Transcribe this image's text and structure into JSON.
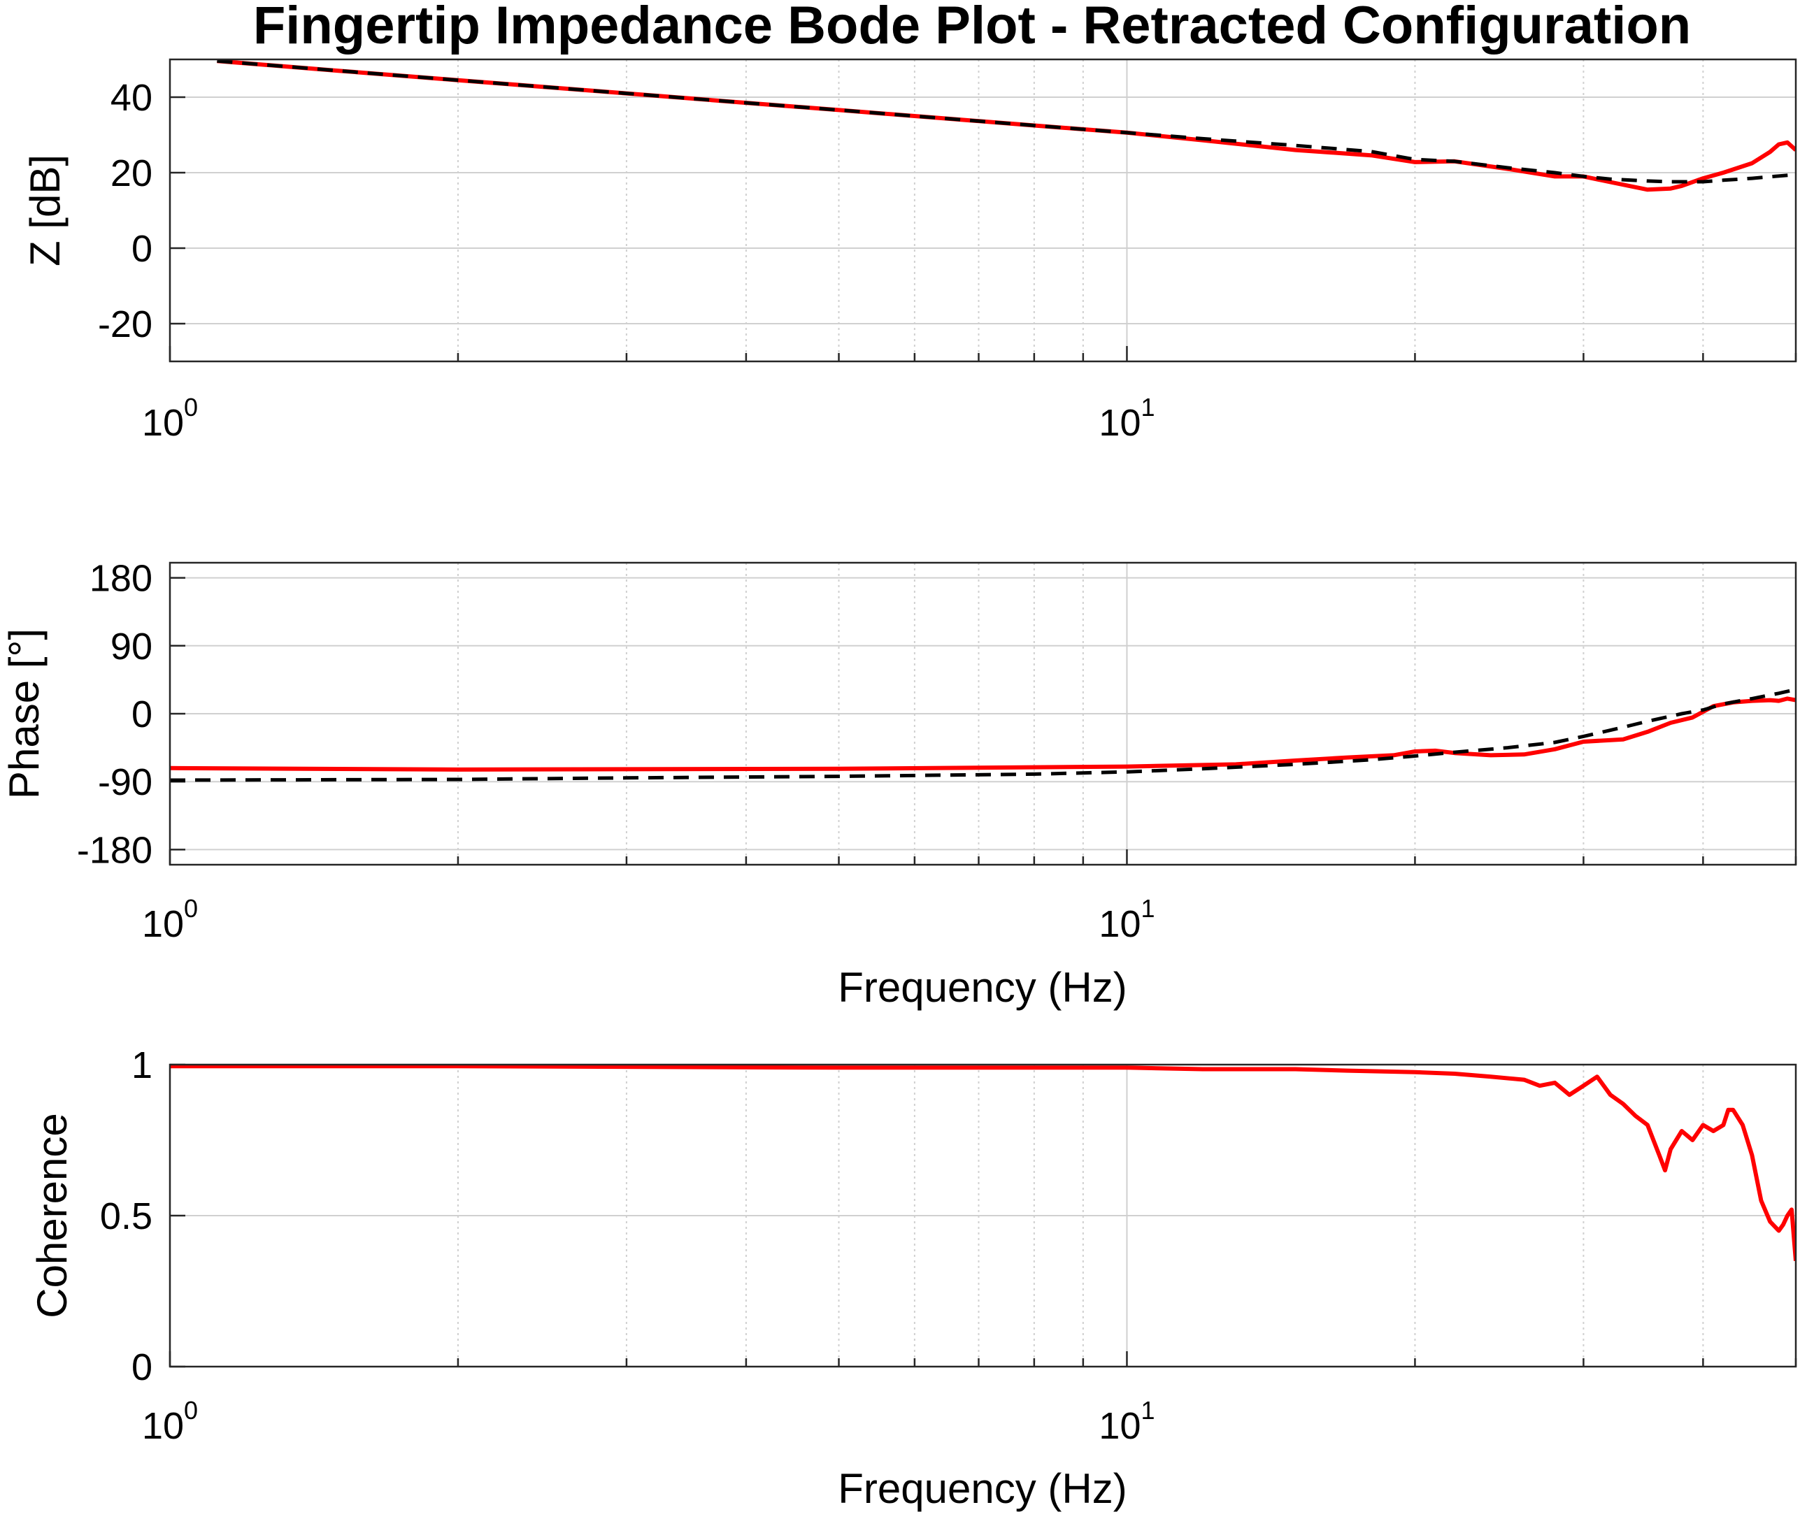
{
  "chart_data": {
    "title": "Fingertip Impedance Bode Plot - Retracted Configuration",
    "type": "line",
    "xscale": "log",
    "xlim": [
      1,
      50
    ],
    "grid": true,
    "subplots": [
      {
        "id": "magnitude",
        "type": "line",
        "xlabel": "",
        "ylabel": "Z [dB]",
        "ylim": [
          -30,
          50
        ],
        "yticks": [
          "40",
          "20",
          "0",
          "-20"
        ],
        "xticks": [
          {
            "base": "10",
            "exp": "0"
          },
          {
            "base": "10",
            "exp": "1"
          }
        ],
        "series": [
          {
            "color": "#ff0000",
            "dash": "solid",
            "x": [
              1.12,
              1.5,
              2,
              3,
              4,
              5,
              6,
              8,
              10,
              12,
              15,
              18,
              20,
              22,
              25,
              28,
              30,
              32,
              35,
              37,
              38,
              40,
              42,
              45,
              47,
              48,
              49,
              50
            ],
            "y": [
              49.6,
              47.0,
              44.5,
              41.0,
              38.5,
              36.6,
              35.0,
              32.5,
              30.6,
              28.6,
              26.0,
              24.6,
              22.8,
              23.0,
              21.0,
              19.0,
              19.0,
              17.5,
              15.5,
              15.8,
              16.5,
              18.5,
              20.0,
              22.5,
              25.5,
              27.5,
              28.0,
              26.0
            ]
          },
          {
            "color": "#000000",
            "dash": "dashed",
            "x": [
              1.12,
              1.5,
              2,
              3,
              4,
              5,
              6,
              8,
              10,
              12,
              15,
              18,
              20,
              22,
              25,
              28,
              30,
              32,
              35,
              37,
              40,
              42,
              45,
              50
            ],
            "y": [
              49.6,
              47.0,
              44.5,
              41.0,
              38.5,
              36.6,
              35.0,
              32.5,
              30.6,
              29.0,
              27.2,
              25.6,
              23.5,
              23.0,
              21.3,
              20.0,
              19.0,
              18.3,
              17.8,
              17.6,
              17.6,
              18.0,
              18.5,
              19.5
            ]
          }
        ]
      },
      {
        "id": "phase",
        "type": "line",
        "xlabel": "Frequency (Hz)",
        "ylabel": "Phase [°]",
        "ylim": [
          -200,
          200
        ],
        "yticks": [
          "180",
          "90",
          "0",
          "-90",
          "-180"
        ],
        "xticks": [
          {
            "base": "10",
            "exp": "0"
          },
          {
            "base": "10",
            "exp": "1"
          }
        ],
        "series": [
          {
            "color": "#ff0000",
            "dash": "solid",
            "x": [
              1,
              2,
              5,
              10,
              13,
              15,
              17,
              19,
              20,
              21,
              22,
              24,
              26,
              28,
              30,
              33,
              35,
              37,
              39,
              41,
              43,
              45,
              47,
              48,
              49,
              50
            ],
            "y": [
              -72,
              -74,
              -73,
              -70,
              -67,
              -62,
              -58,
              -55,
              -50,
              -49,
              -52,
              -55,
              -54,
              -47,
              -37,
              -34,
              -24,
              -12,
              -5,
              10,
              15,
              17,
              18,
              17,
              20,
              18
            ]
          },
          {
            "color": "#000000",
            "dash": "dashed",
            "x": [
              1,
              2,
              3,
              5,
              8,
              10,
              12,
              15,
              18,
              20,
              22,
              25,
              28,
              30,
              33,
              35,
              38,
              40,
              42,
              45,
              48,
              50
            ],
            "y": [
              -88,
              -87,
              -85,
              -83,
              -80,
              -77,
              -73,
              -67,
              -61,
              -56,
              -51,
              -45,
              -38,
              -30,
              -18,
              -10,
              0,
              5,
              13,
              20,
              27,
              32
            ]
          }
        ]
      },
      {
        "id": "coherence",
        "type": "line",
        "xlabel": "Frequency (Hz)",
        "ylabel": "Coherence",
        "ylim": [
          0,
          1
        ],
        "yticks": [
          "1",
          "0.5",
          "0"
        ],
        "xticks": [
          {
            "base": "10",
            "exp": "0"
          },
          {
            "base": "10",
            "exp": "1"
          }
        ],
        "series": [
          {
            "color": "#ff0000",
            "dash": "solid",
            "x": [
              1,
              2,
              5,
              10,
              12,
              15,
              17,
              20,
              22,
              24,
              26,
              27,
              28,
              29,
              30,
              31,
              32,
              33,
              34,
              35,
              36,
              36.5,
              37,
              38,
              39,
              40,
              41,
              42,
              42.5,
              43,
              44,
              45,
              46,
              47,
              48,
              48.5,
              49,
              49.5,
              50
            ],
            "y": [
              0.995,
              0.995,
              0.99,
              0.99,
              0.985,
              0.985,
              0.98,
              0.975,
              0.97,
              0.96,
              0.95,
              0.93,
              0.94,
              0.9,
              0.93,
              0.96,
              0.9,
              0.87,
              0.83,
              0.8,
              0.7,
              0.65,
              0.72,
              0.78,
              0.75,
              0.8,
              0.78,
              0.8,
              0.85,
              0.85,
              0.8,
              0.7,
              0.55,
              0.48,
              0.45,
              0.47,
              0.5,
              0.52,
              0.35
            ]
          }
        ]
      }
    ]
  }
}
